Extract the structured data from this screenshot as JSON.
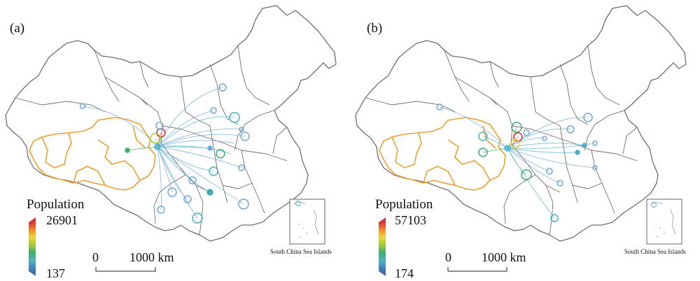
{
  "panels": [
    {
      "label": "(a)",
      "legend": {
        "title": "Population",
        "max": "26901",
        "min": "137"
      },
      "scale_bar": {
        "start": "0",
        "end": "1000 km"
      },
      "inset_caption": "South China Sea Islands"
    },
    {
      "label": "(b)",
      "legend": {
        "title": "Population",
        "max": "57103",
        "min": "174"
      },
      "scale_bar": {
        "start": "0",
        "end": "1000 km"
      },
      "inset_caption": "South China Sea Islands"
    }
  ],
  "colors": {
    "boundary": "#7a6a6a",
    "source_region": "#e8a030",
    "ramp": [
      "#3f6fb0",
      "#4fb0c8",
      "#3fae6f",
      "#a8cf3a",
      "#f0d23a",
      "#ef8a2a",
      "#d8313a"
    ]
  }
}
